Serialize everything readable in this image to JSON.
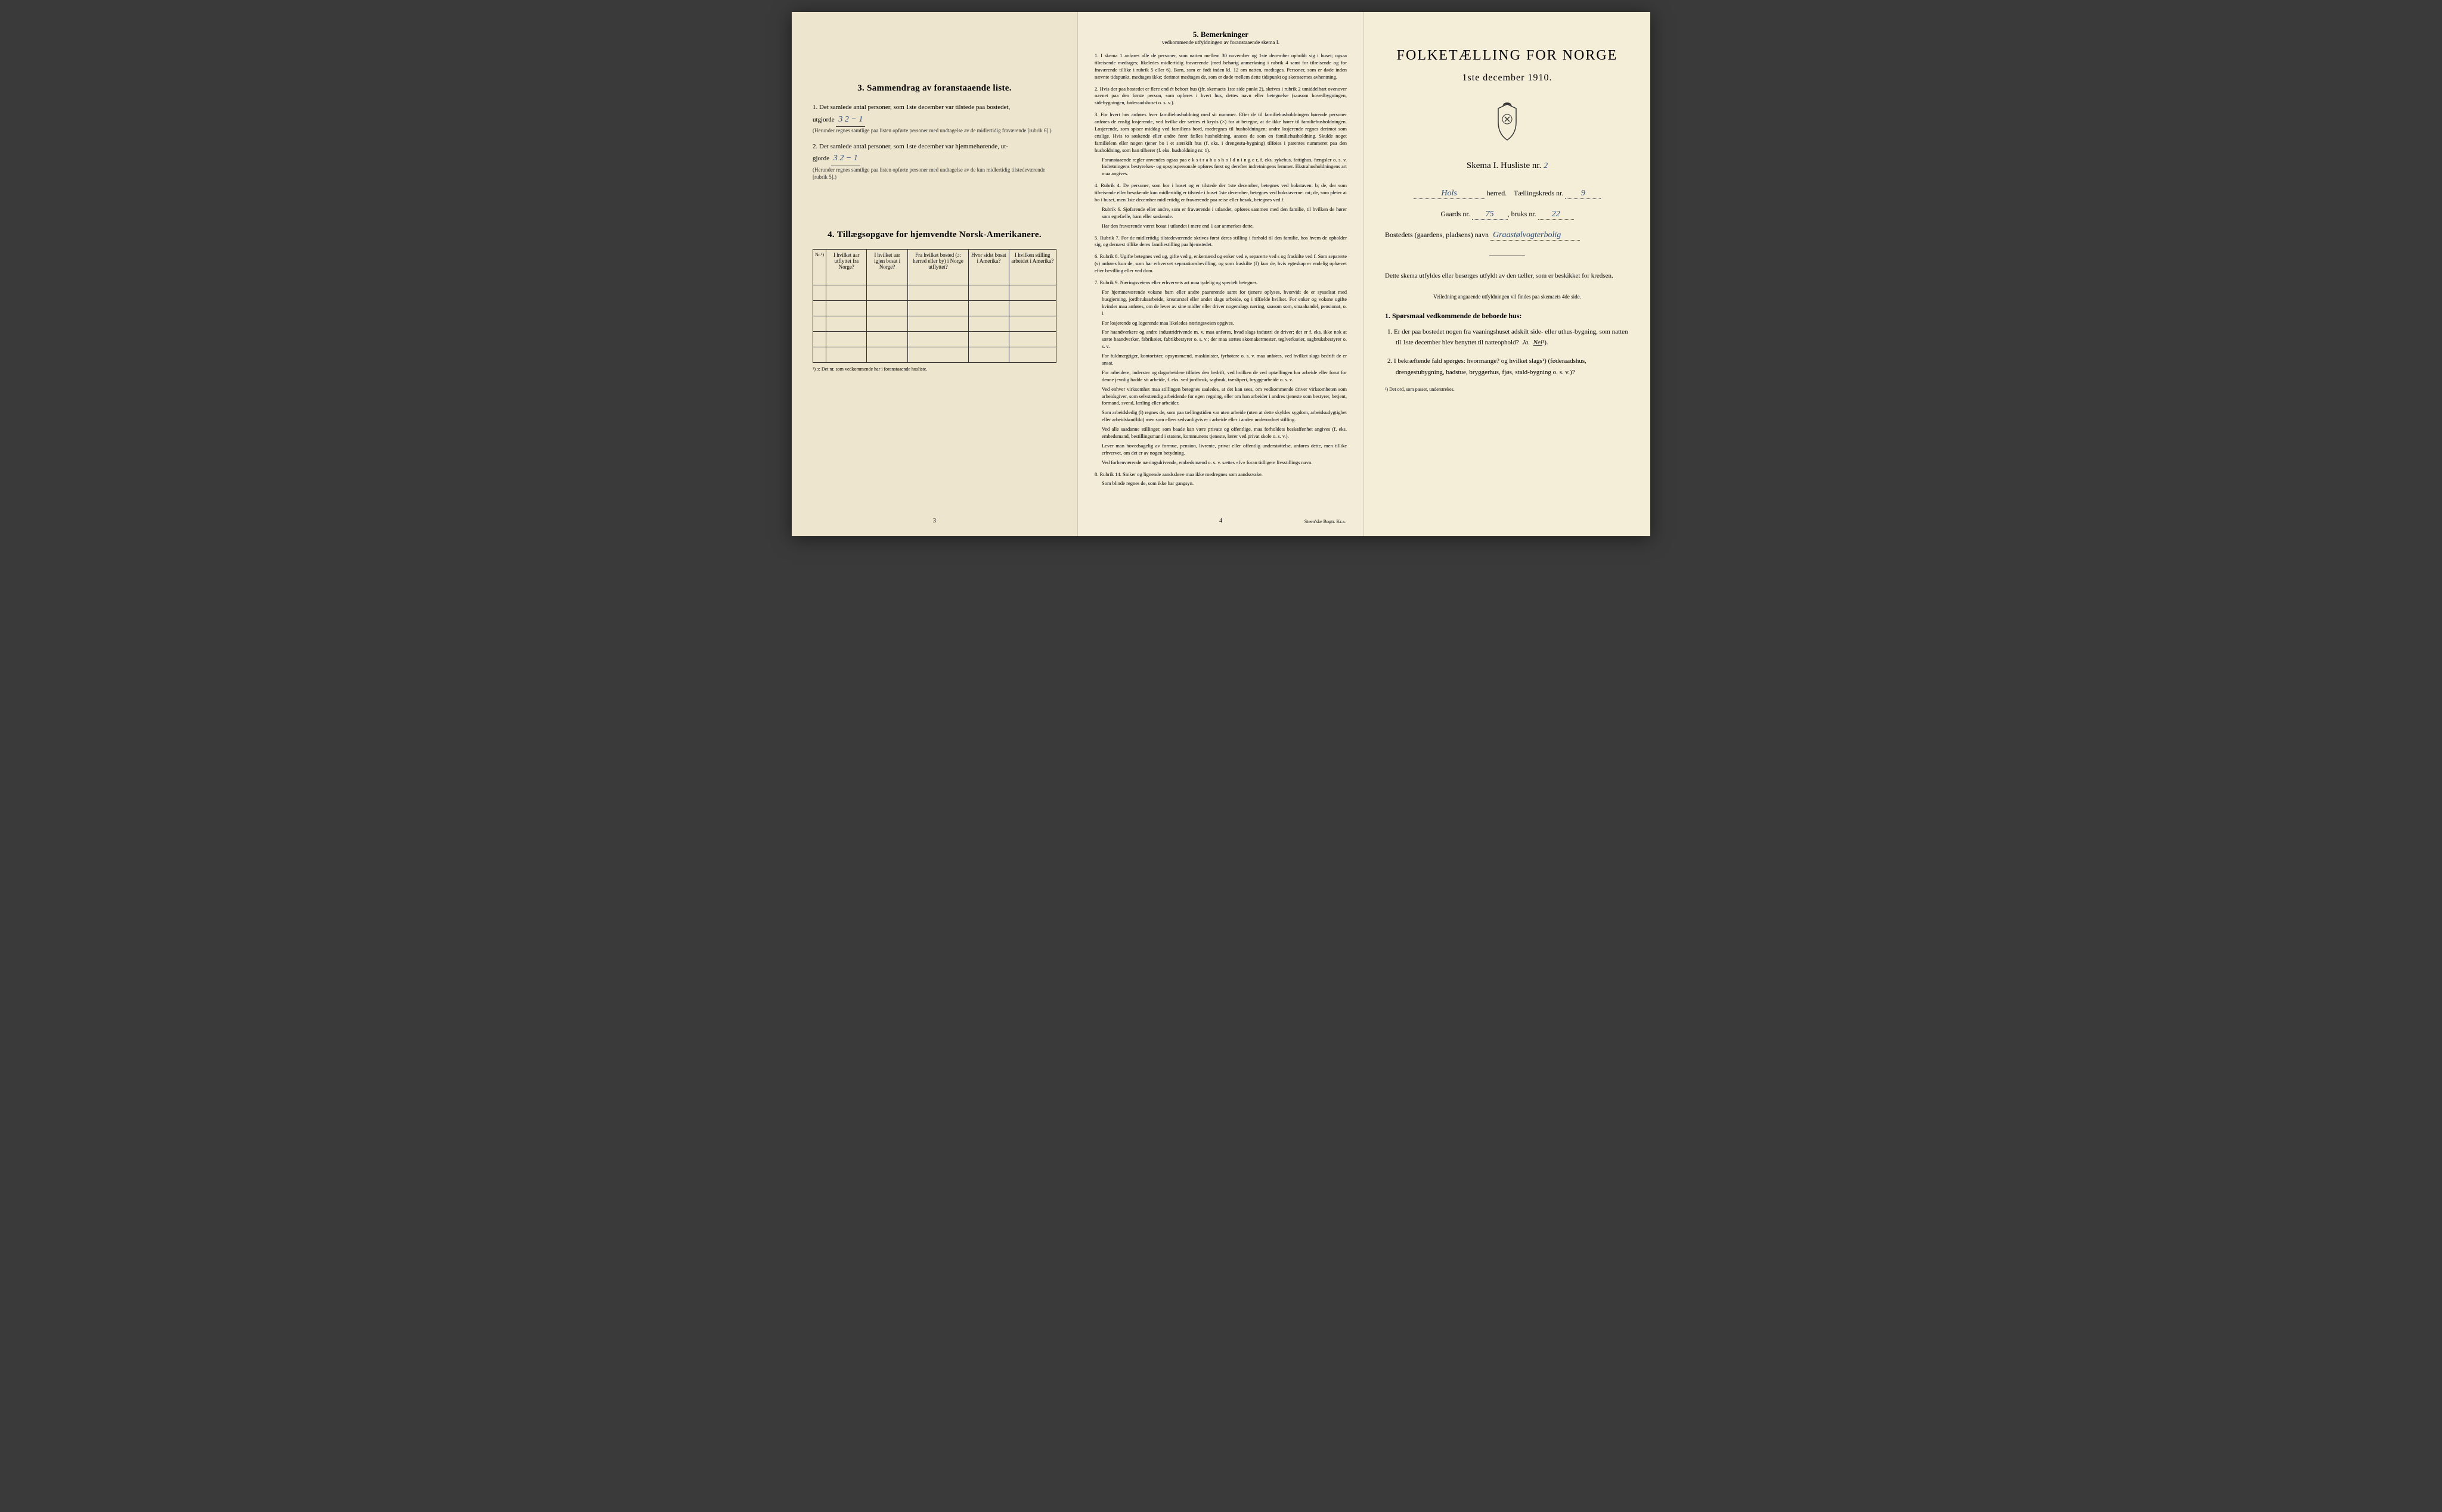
{
  "colors": {
    "paper_left": "#ede5cd",
    "paper_middle": "#f2ecd8",
    "paper_right": "#f4eed9",
    "ink": "#1a1a1a",
    "handwriting": "#2a4a7a",
    "background": "#3a3a3a"
  },
  "left": {
    "section3_title": "3.  Sammendrag av foranstaaende liste.",
    "item1_text": "Det samlede antal personer, som 1ste december var tilstede paa bostedet,",
    "item1_prefix": "1.",
    "item1_utgjorde": "utgjorde",
    "item1_written": "3   2 − 1",
    "item1_note": "(Herunder regnes samtlige paa listen opførte personer med undtagelse av de midlertidig fraværende [rubrik 6].)",
    "item2_prefix": "2.",
    "item2_text": "Det samlede antal personer, som 1ste december var hjemmehørende, ut-",
    "item2_gjorde": "gjorde",
    "item2_written": "3   2 − 1",
    "item2_note": "(Herunder regnes samtlige paa listen opførte personer med undtagelse av de kun midlertidig tilstedeværende [rubrik 5].)",
    "section4_title": "4. Tillægsopgave for hjemvendte Norsk-Amerikanere.",
    "table": {
      "headers": [
        "Nr.¹)",
        "I hvilket aar utflyttet fra Norge?",
        "I hvilket aar igjen bosat i Norge?",
        "Fra hvilket bosted (ɔ: herred eller by) i Norge utflyttet?",
        "Hvor sidst bosat i Amerika?",
        "I hvilken stilling arbeidet i Amerika?"
      ],
      "row_count": 5
    },
    "table_footnote": "¹) ɔ: Det nr. som vedkommende har i foranstaaende husliste.",
    "page_num": "3"
  },
  "middle": {
    "title_num": "5.",
    "title": "Bemerkninger",
    "subtitle": "vedkommende utfyldningen av foranstaaende skema I.",
    "items": [
      {
        "num": "1.",
        "text": "I skema 1 anføres alle de personer, som natten mellem 30 november og 1ste december opholdt sig i huset; ogsaa tilreisende medtages; likeledes midlertidig fraværende (med behørig anmerkning i rubrik 4 samt for tilreisende og for fraværende tillike i rubrik 5 eller 6). Barn, som er født inden kl. 12 om natten, medtages. Personer, som er døde inden nævnte tidspunkt, medtages ikke; derimot medtages de, som er døde mellem dette tidspunkt og skemaernes avhentning."
      },
      {
        "num": "2.",
        "text": "Hvis der paa bostedet er flere end ét beboet hus (jfr. skemaets 1ste side punkt 2), skrives i rubrik 2 umiddelbart ovenover navnet paa den første person, som opføres i hvert hus, dettes navn eller betegnelse (saasom hovedbygningen, sidebygningen, føderaadshuset o. s. v.)."
      },
      {
        "num": "3.",
        "text": "For hvert hus anføres hver familiehusholdning med sit nummer. Efter de til familiehusholdningen hørende personer anføres de enslig losjerende, ved hvilke der sættes et kryds (×) for at betegne, at de ikke hører til familiehusholdningen. Losjerende, som spiser middag ved familiens bord, medregnes til husholdningen; andre losjerende regnes derimot som enslige. Hvis to søskende eller andre fører fælles husholdning, ansees de som en familiehusholdning. Skulde noget familielem eller nogen tjener bo i et særskilt hus (f. eks. i drengestu-bygning) tilføies i parentes nummeret paa den husholdning, som han tilhører (f. eks. husholdning nr. 1).",
        "sub": "Foranstaaende regler anvendes ogsaa paa e k s t r a h u s h o l d n i n g e r, f. eks. sykehus, fattighus, fængsler o. s. v. Indretningens bestyrelses- og opsynspersonale opføres først og derefter indretningens lemmer. Ekstrahusholdningens art maa angives."
      },
      {
        "num": "4.",
        "text": "Rubrik 4. De personer, som bor i huset og er tilstede der 1ste december, betegnes ved bokstaven: b; de, der som tilreisende eller besøkende kun midlertidig er tilstede i huset 1ste december, betegnes ved bokstaverne: mt; de, som pleier at bo i huset, men 1ste december midlertidig er fraværende paa reise eller besøk, betegnes ved f.",
        "sub": "Rubrik 6. Sjøfarende eller andre, som er fraværende i utlandet, opføres sammen med den familie, til hvilken de hører som egtefælle, barn eller søskende.",
        "sub2": "Har den fraværende været bosat i utlandet i mere end 1 aar anmerkes dette."
      },
      {
        "num": "5.",
        "text": "Rubrik 7. For de midlertidig tilstedeværende skrives først deres stilling i forhold til den familie, hos hvem de opholder sig, og dernæst tillike deres familiestilling paa hjemstedet."
      },
      {
        "num": "6.",
        "text": "Rubrik 8. Ugifte betegnes ved ug, gifte ved g, enkemænd og enker ved e, separerte ved s og fraskilte ved f. Som separerte (s) anføres kun de, som har erhvervet separationsbevilling, og som fraskilte (f) kun de, hvis egteskap er endelig ophævet efter bevilling eller ved dom."
      },
      {
        "num": "7.",
        "text": "Rubrik 9. Næringsveiens eller erhvervets art maa tydelig og specielt betegnes.",
        "sub": "For hjemmeværende voksne barn eller andre paarørende samt for tjenere oplyses, hvorvidt de er sysselsat med husgjerning, jordbruksarbeide, kreaturstel eller andet slags arbeide, og i tilfælde hvilket. For enker og voksne ugifte kvinder maa anføres, om de lever av sine midler eller driver nogenslags næring, saasom som, smaahandel, pensionat, o. l.",
        "sub2": "For losjerende og logerende maa likeledes næringsveien opgives.",
        "sub3": "For haandverkere og andre industridrivende m. v. maa anføres, hvad slags industri de driver; det er f. eks. ikke nok at sætte haandverker, fabrikøier, fabrikbestyrer o. s. v.; der maa sættes skomakermester, teglverkseier, sagbruksbestyrer o. s. v.",
        "sub4": "For fuldmægtiger, kontorister, opsynsmænd, maskinister, fyrbøtere o. s. v. maa anføres, ved hvilket slags bedrift de er ansat.",
        "sub5": "For arbeidere, inderster og dagarbeidere tilføies den bedrift, ved hvilken de ved optællingen har arbeide eller forut for denne jevnlig hadde sit arbeide, f. eks. ved jordbruk, sagbruk, træsliperi, bryggearbeide o. s. v.",
        "sub6": "Ved enhver virksomhet maa stillingen betegnes saaledes, at det kan sees, om vedkommende driver virksomheten som arbeidsgiver, som selvstændig arbeidende for egen regning, eller om han arbeider i andres tjeneste som bestyrer, betjent, formand, svend, lærling eller arbeider.",
        "sub7": "Som arbeidsledig (l) regnes de, som paa tællingstiden var uten arbeide (uten at dette skyldes sygdom, arbeidsudygtighet eller arbeidskonflikt) men som ellers sedvanligvis er i arbeide eller i anden underordnet stilling.",
        "sub8": "Ved alle saadanne stillinger, som baade kan være private og offentlige, maa forholdets beskaffenhet angives (f. eks. embedsmand, bestillingsmand i statens, kommunens tjeneste, lærer ved privat skole o. s. v.).",
        "sub9": "Lever man hovedsagelig av formue, pension, livrente, privat eller offentlig understøttelse, anføres dette, men tillike erhvervet, om det er av nogen betydning.",
        "sub10": "Ved forhenværende næringsdrivende, embedsmænd o. s. v. sættes «fv» foran tidligere livsstillings navn."
      },
      {
        "num": "8.",
        "text": "Rubrik 14. Sinker og lignende aandssløve maa ikke medregnes som aandssvake.",
        "sub": "Som blinde regnes de, som ikke har gangsyn."
      }
    ],
    "page_num": "4",
    "printer": "Steen'ske Bogtr. Kr.a."
  },
  "right": {
    "main_title": "FOLKETÆLLING FOR NORGE",
    "date": "1ste december 1910.",
    "skema_label": "Skema I.  Husliste nr.",
    "husliste_nr": "2",
    "herred_written": "Hols",
    "herred_label": "herred.",
    "tallings_label": "Tællingskreds nr.",
    "tallings_nr": "9",
    "gaards_label": "Gaards nr.",
    "gaards_nr": "75",
    "bruks_label": "bruks nr.",
    "bruks_nr": "22",
    "bosted_label": "Bostedets (gaardens, pladsens) navn",
    "bosted_written": "Graastølvogterbolig",
    "instr_text": "Dette skema utfyldes eller besørges utfyldt av den tæller, som er beskikket for kredsen.",
    "instr_sub": "Veiledning angaaende utfyldningen vil findes paa skemaets 4de side.",
    "q_heading": "1. Spørsmaal vedkommende de beboede hus:",
    "q1_num": "1.",
    "q1_text": "Er der paa bostedet nogen fra vaaningshuset adskilt side- eller uthus-bygning, som natten til 1ste december blev benyttet til natteophold?",
    "q1_ja": "Ja.",
    "q1_nei": "Nei",
    "q1_sup": "¹).",
    "q2_num": "2.",
    "q2_text": "I bekræftende fald spørges: hvormange?",
    "q2_text2": "og hvilket slags¹) (føderaadshus, drengestubygning, badstue, bryggerhus, fjøs, stald-bygning o. s. v.)?",
    "footnote": "¹) Det ord, som passer, understrekes."
  }
}
